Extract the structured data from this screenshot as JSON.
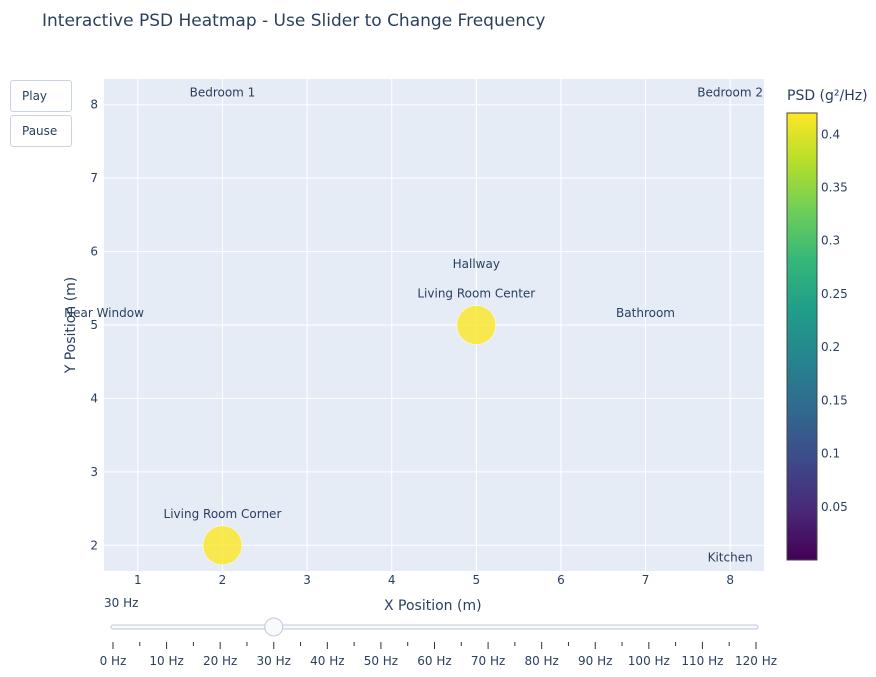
{
  "title": "Interactive PSD Heatmap - Use Slider to Change Frequency",
  "controls": {
    "play_label": "Play",
    "pause_label": "Pause"
  },
  "slider": {
    "current_label": "30 Hz",
    "current_value": 30,
    "steps": [
      "0 Hz",
      "10 Hz",
      "20 Hz",
      "30 Hz",
      "40 Hz",
      "50 Hz",
      "60 Hz",
      "70 Hz",
      "80 Hz",
      "90 Hz",
      "100 Hz",
      "110 Hz",
      "120 Hz"
    ]
  },
  "colors": {
    "plot_bg": "#e5ecf6",
    "grid": "#ffffff",
    "marker": "#fde725"
  },
  "chart_data": {
    "type": "scatter",
    "title": "Interactive PSD Heatmap - Use Slider to Change Frequency",
    "xlabel": "X Position (m)",
    "ylabel": "Y Position (m)",
    "xlim": [
      0.6,
      8.4
    ],
    "ylim": [
      1.65,
      8.35
    ],
    "xticks": [
      1,
      2,
      3,
      4,
      5,
      6,
      7,
      8
    ],
    "yticks": [
      2,
      3,
      4,
      5,
      6,
      7,
      8
    ],
    "colorbar": {
      "title": "PSD (g²/Hz)",
      "min": 0,
      "max": 0.42,
      "ticks": [
        0.05,
        0.1,
        0.15,
        0.2,
        0.25,
        0.3,
        0.35,
        0.4
      ],
      "colorscale": "Viridis"
    },
    "points": [
      {
        "label": "Living Room Center",
        "x": 5,
        "y": 5,
        "psd": 0.41
      },
      {
        "label": "Living Room Corner",
        "x": 2,
        "y": 2,
        "psd": 0.41
      },
      {
        "label": "Bedroom 1",
        "x": 2,
        "y": 8,
        "psd": 0.0
      },
      {
        "label": "Bedroom 2",
        "x": 8,
        "y": 8,
        "psd": 0.0
      },
      {
        "label": "Hallway",
        "x": 5,
        "y": 5.67,
        "psd": 0.0
      },
      {
        "label": "Near Window",
        "x": 0.6,
        "y": 5,
        "psd": 0.0
      },
      {
        "label": "Bathroom",
        "x": 7,
        "y": 5,
        "psd": 0.0
      },
      {
        "label": "Kitchen",
        "x": 8,
        "y": 1.67,
        "psd": 0.0
      }
    ]
  }
}
